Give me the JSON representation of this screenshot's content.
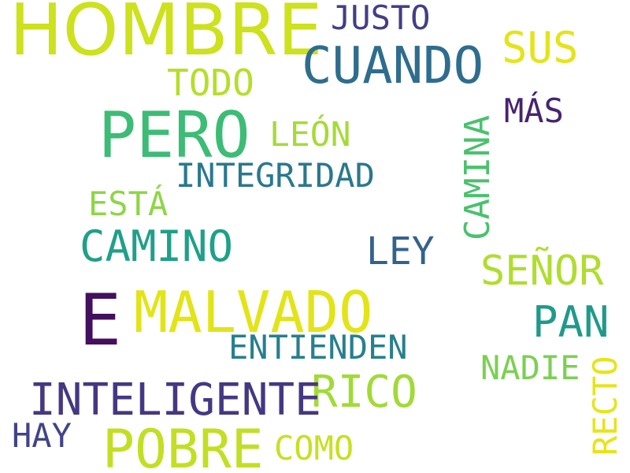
{
  "word_cloud": {
    "words": {
      "hombre": {
        "text": "HOMBRE",
        "color": "#cde11d"
      },
      "cuando": {
        "text": "CUANDO",
        "color": "#2f6d8e"
      },
      "justo": {
        "text": "JUSTO",
        "color": "#433e85"
      },
      "sus": {
        "text": "SUS",
        "color": "#e4e419"
      },
      "todo": {
        "text": "TODO",
        "color": "#b5de2b"
      },
      "pero": {
        "text": "PERO",
        "color": "#3cbc75"
      },
      "mas": {
        "text": "MÁS",
        "color": "#46246e"
      },
      "leon": {
        "text": "LEÓN",
        "color": "#a5db36"
      },
      "camina": {
        "text": "CAMINA",
        "color": "#4ac16d"
      },
      "integridad": {
        "text": "INTEGRIDAD",
        "color": "#2a788e"
      },
      "esta": {
        "text": "ESTÁ",
        "color": "#8ed645"
      },
      "camino": {
        "text": "CAMINO",
        "color": "#1fa088"
      },
      "ley": {
        "text": "LEY",
        "color": "#33638d"
      },
      "senor": {
        "text": "SEÑOR",
        "color": "#b0dd2f"
      },
      "e": {
        "text": "E",
        "color": "#440f5f"
      },
      "malvado": {
        "text": "MALVADO",
        "color": "#e2e418"
      },
      "pan": {
        "text": "PAN",
        "color": "#1f9a8a"
      },
      "entienden": {
        "text": "ENTIENDEN",
        "color": "#277f8e"
      },
      "nadie": {
        "text": "NADIE",
        "color": "#7ad151"
      },
      "recto": {
        "text": "RECTO",
        "color": "#e7e419"
      },
      "rico": {
        "text": "RICO",
        "color": "#a2da37"
      },
      "inteligente": {
        "text": "INTELIGENTE",
        "color": "#453882"
      },
      "hay": {
        "text": "HAY",
        "color": "#414487"
      },
      "pobre": {
        "text": "POBRE",
        "color": "#c2df23"
      },
      "como": {
        "text": "COMO",
        "color": "#c8e020"
      }
    }
  }
}
